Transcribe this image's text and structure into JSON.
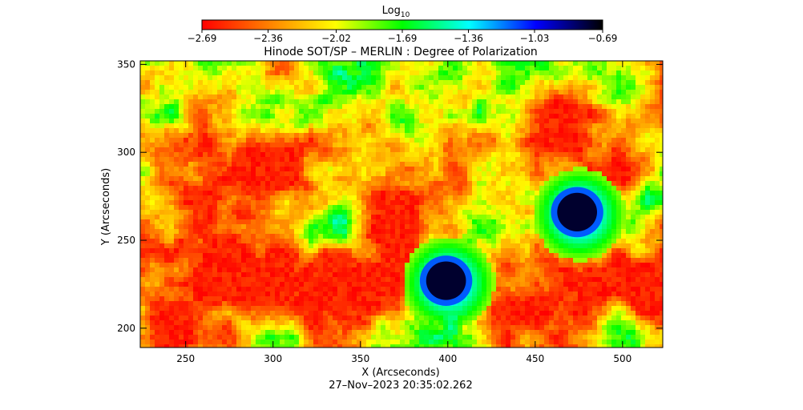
{
  "chart_data": {
    "type": "heatmap",
    "title": "Hinode SOT/SP – MERLIN : Degree of Polarization",
    "xlabel": "X (Arcseconds)",
    "ylabel": "Y (Arcseconds)",
    "timestamp": "27–Nov–2023 20:35:02.262",
    "xlim": [
      224,
      523
    ],
    "ylim": [
      189,
      352
    ],
    "x_ticks": [
      250,
      300,
      350,
      400,
      450,
      500
    ],
    "x_tick_labels": [
      "250",
      "300",
      "350",
      "400",
      "450",
      "500"
    ],
    "y_ticks": [
      200,
      250,
      300,
      350
    ],
    "y_tick_labels": [
      "200",
      "250",
      "300",
      "350"
    ],
    "colorbar": {
      "label": "Log",
      "label_subscript": "10",
      "range": [
        -2.69,
        -0.69
      ],
      "ticks": [
        -2.69,
        -2.36,
        -2.02,
        -1.69,
        -1.36,
        -1.03,
        -0.69
      ],
      "tick_labels": [
        "−2.69",
        "−2.36",
        "−2.02",
        "−1.69",
        "−1.36",
        "−1.03",
        "−0.69"
      ],
      "colors": [
        "#ff0000",
        "#ff8000",
        "#ffff00",
        "#00ff00",
        "#00ffff",
        "#0000ff",
        "#000000"
      ]
    },
    "features": [
      {
        "kind": "sunspot",
        "x": 399,
        "y": 227,
        "radius": 12,
        "value": -0.75
      },
      {
        "kind": "sunspot",
        "x": 474,
        "y": 266,
        "radius": 12,
        "value": -0.75
      }
    ]
  }
}
